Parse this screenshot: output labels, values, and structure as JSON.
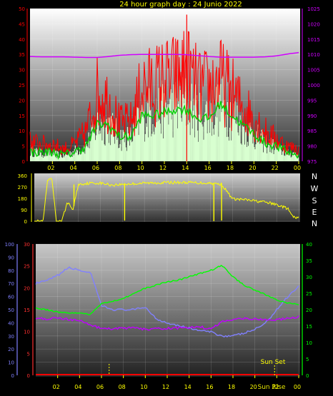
{
  "title": "24 hour graph day : 24 Junio 2022",
  "compass": [
    "N",
    "W",
    "S",
    "E",
    "N"
  ],
  "sun_set_label": "Sun Set",
  "sun_rise_label": "Sun Rise",
  "colors": {
    "background": "#000000",
    "gust": "#ff0000",
    "wind_avg": "#00d000",
    "wind_bars": "#d8ffd0",
    "pressure": "#d000ff",
    "direction": "#ffff00",
    "temperature": "#ff3030",
    "humidity": "#8080ff",
    "dewpoint": "#c000ff",
    "solar": "#00ff00",
    "ticks": "#ffff00"
  },
  "chart_data": [
    {
      "type": "line",
      "panel": "wind",
      "title": "24 hour graph day : 24 Junio 2022",
      "x_ticks": [
        "02",
        "04",
        "06",
        "08",
        "10",
        "12",
        "14",
        "16",
        "18",
        "20",
        "22",
        "00"
      ],
      "y_left": {
        "ticks": [
          "0",
          "5",
          "10",
          "15",
          "20",
          "25",
          "30",
          "35",
          "40",
          "45",
          "50"
        ],
        "lim": [
          0,
          50
        ]
      },
      "y_right": {
        "ticks": [
          "975",
          "980",
          "985",
          "990",
          "995",
          "1000",
          "1005",
          "1010",
          "1015",
          "1020",
          "1025"
        ],
        "lim": [
          975,
          1025
        ]
      },
      "hours": [
        0,
        1,
        2,
        3,
        4,
        5,
        6,
        7,
        8,
        9,
        10,
        11,
        12,
        13,
        14,
        15,
        16,
        17,
        18,
        19,
        20,
        21,
        22,
        23,
        24
      ],
      "series": [
        {
          "values": [
            8,
            7,
            7,
            5,
            7,
            12,
            28,
            25,
            15,
            16,
            30,
            31,
            33,
            34,
            37,
            30,
            30,
            33,
            28,
            22,
            18,
            12,
            9,
            6,
            5
          ]
        },
        {
          "values": [
            3,
            3,
            3,
            2,
            3,
            5,
            12,
            12,
            8,
            8,
            15,
            15,
            16,
            17,
            17,
            14,
            14,
            19,
            15,
            12,
            9,
            6,
            5,
            3,
            2
          ]
        },
        {
          "values": [
            4,
            3,
            3,
            2,
            4,
            6,
            14,
            14,
            9,
            9,
            18,
            19,
            20,
            21,
            22,
            18,
            18,
            22,
            18,
            13,
            10,
            7,
            5,
            3,
            3
          ]
        },
        {
          "values": [
            1009.3,
            1009.2,
            1009.2,
            1009.2,
            1009.1,
            1009.0,
            1009.0,
            1009.3,
            1009.7,
            1009.9,
            1010.0,
            1010.0,
            1010.0,
            1010.0,
            1009.9,
            1009.6,
            1009.3,
            1009.1,
            1009.1,
            1009.1,
            1009.1,
            1009.2,
            1009.5,
            1010.1,
            1010.6
          ]
        }
      ]
    },
    {
      "type": "line",
      "panel": "direction",
      "y_ticks": [
        "0",
        "90",
        "180",
        "270",
        "360"
      ],
      "ylim": [
        0,
        360
      ],
      "hours": [
        0,
        0.8,
        1.2,
        1.6,
        2.0,
        2.5,
        3.0,
        3.5,
        4.0,
        5.0,
        6.0,
        7.0,
        8.0,
        10.0,
        12.0,
        14.0,
        16.0,
        17.0,
        18.0,
        19.0,
        20.0,
        21.0,
        22.0,
        23.0,
        23.5,
        24.0
      ],
      "values": [
        0,
        0,
        320,
        330,
        0,
        0,
        150,
        90,
        290,
        300,
        300,
        285,
        290,
        300,
        305,
        305,
        300,
        290,
        175,
        170,
        160,
        150,
        130,
        100,
        30,
        25
      ]
    },
    {
      "type": "line",
      "panel": "temperature",
      "x_ticks": [
        "02",
        "04",
        "06",
        "08",
        "10",
        "12",
        "14",
        "16",
        "18",
        "20",
        "22",
        "00"
      ],
      "y_left": {
        "ticks": [
          "0",
          "10",
          "20",
          "30",
          "40",
          "50",
          "60",
          "70",
          "80",
          "90",
          "100"
        ],
        "lim": [
          0,
          100
        ]
      },
      "y_temp": {
        "ticks": [
          "0",
          "5",
          "10",
          "15",
          "20",
          "25",
          "30"
        ],
        "lim": [
          0,
          30
        ]
      },
      "y_right": {
        "ticks": [
          "0",
          "5",
          "10",
          "15",
          "20",
          "25",
          "30",
          "35",
          "40"
        ],
        "lim": [
          0,
          40
        ]
      },
      "hours": [
        0,
        1,
        2,
        3,
        4,
        5,
        6,
        7,
        8,
        9,
        10,
        11,
        12,
        13,
        14,
        15,
        16,
        17,
        18,
        19,
        20,
        21,
        22,
        23,
        24
      ],
      "series": [
        {
          "values": [
            13.0,
            12.9,
            13.1,
            12.8,
            12.5,
            11.5,
            10.7,
            10.6,
            10.8,
            10.8,
            10.5,
            10.6,
            10.7,
            10.8,
            10.9,
            11.1,
            10.5,
            12.3,
            12.8,
            13.0,
            12.9,
            12.7,
            12.7,
            13.0,
            13.4
          ]
        },
        {
          "values": [
            20.5,
            20.0,
            19.3,
            19.0,
            19.0,
            18.5,
            22.0,
            22.5,
            23.5,
            25.0,
            26.5,
            27.5,
            28.5,
            29.0,
            30.0,
            31.0,
            32.0,
            33.5,
            30.0,
            27.5,
            26.0,
            24.5,
            23.0,
            22.0,
            21.5
          ]
        },
        {
          "values": [
            70,
            72,
            76,
            82,
            80,
            78,
            53,
            50,
            50,
            50,
            52,
            43,
            40,
            38,
            36,
            34,
            33,
            30,
            30,
            32,
            35,
            40,
            50,
            60,
            68
          ]
        },
        {
          "values": [
            0,
            0,
            0,
            0,
            0,
            0,
            0,
            0,
            0,
            0,
            0,
            0,
            0,
            0,
            0,
            0,
            0,
            0,
            0,
            0,
            0,
            0,
            0,
            0,
            0
          ]
        }
      ]
    }
  ]
}
